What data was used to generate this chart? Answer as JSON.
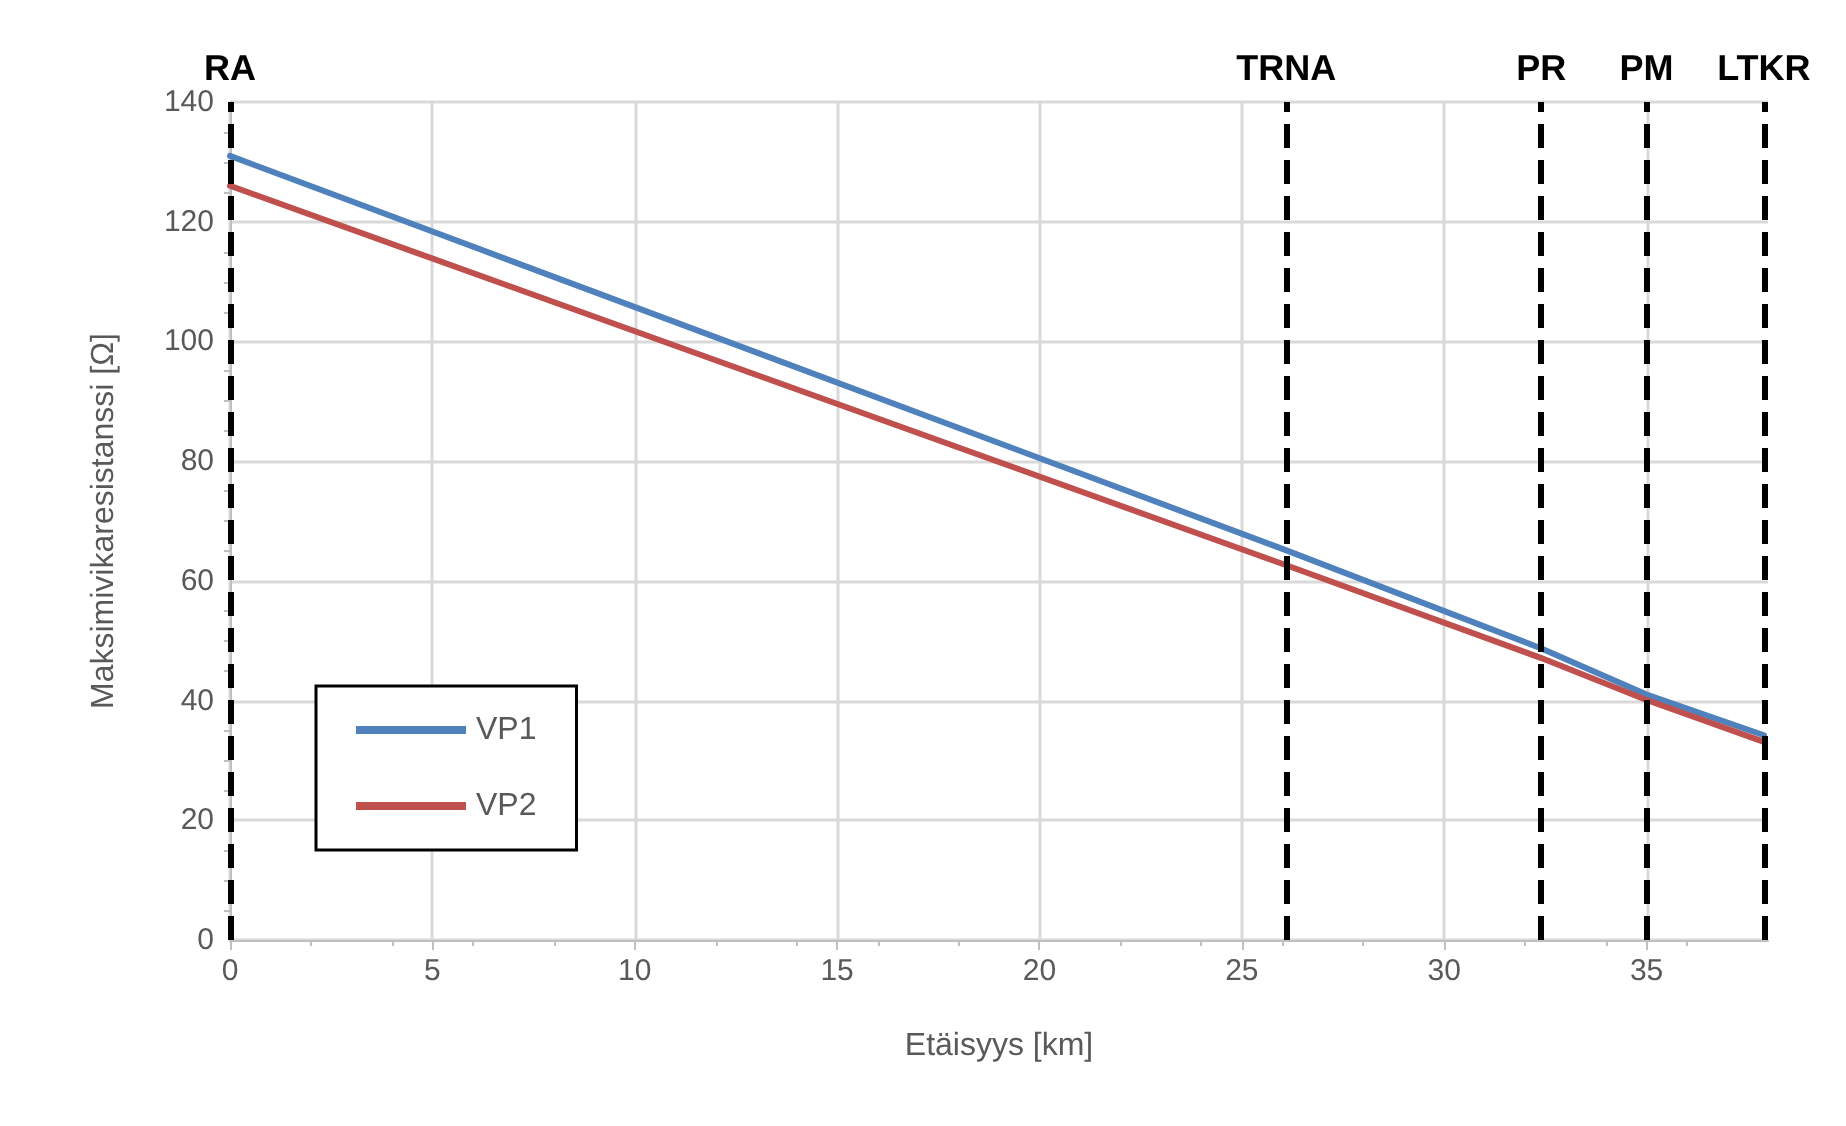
{
  "chart_data": {
    "type": "line",
    "xlabel": "Etäisyys [km]",
    "ylabel": "Maksimivikaresistanssi [Ω]",
    "xlim": [
      0,
      38
    ],
    "xticks": [
      0,
      5,
      10,
      15,
      20,
      25,
      30,
      35
    ],
    "ylim": [
      0,
      140
    ],
    "yticks": [
      0,
      20,
      40,
      60,
      80,
      100,
      120,
      140
    ],
    "grid": true,
    "legend": "bottom left",
    "marker": "none",
    "line_style": "solid",
    "series": [
      {
        "name": "VP1",
        "color": "#4f81bd",
        "x": [
          0,
          26.1,
          32.4,
          35.0,
          37.9
        ],
        "values": [
          131,
          65.1,
          48.7,
          41.0,
          34.2
        ]
      },
      {
        "name": "VP2",
        "color": "#c0504d",
        "x": [
          0,
          26.1,
          32.4,
          35.0,
          37.9
        ],
        "values": [
          126,
          62.6,
          47.1,
          40.1,
          33.1
        ]
      }
    ],
    "ref_lines": [
      {
        "axis": "x",
        "value": 0,
        "label": "RA",
        "color": "#000000",
        "line_style": "dashed"
      },
      {
        "axis": "x",
        "value": 26.1,
        "label": "TRNA",
        "color": "#000000",
        "line_style": "dashed"
      },
      {
        "axis": "x",
        "value": 32.4,
        "label": "PR",
        "color": "#000000",
        "line_style": "dashed"
      },
      {
        "axis": "x",
        "value": 35.0,
        "label": "PM",
        "color": "#000000",
        "line_style": "dashed"
      },
      {
        "axis": "x",
        "value": 37.9,
        "label": "LTKR",
        "color": "#000000",
        "line_style": "dashed"
      }
    ]
  }
}
